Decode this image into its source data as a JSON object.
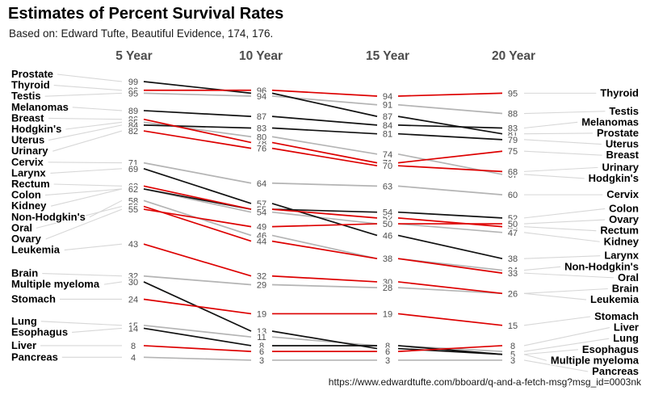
{
  "title": "Estimates of Percent Survival Rates",
  "subtitle": "Based on: Edward Tufte, Beautiful Evidence, 174, 176.",
  "source_url": "https://www.edwardtufte.com/bboard/q-and-a-fetch-msg?msg_id=0003nk",
  "colors": {
    "red": "#dd0000",
    "black": "#111111",
    "gray": "#b4b4b4",
    "leader": "#d7d7d7",
    "number": "#4d4d4d"
  },
  "chart_data": {
    "type": "line",
    "variant": "slopegraph",
    "title": "Estimates of Percent Survival Rates",
    "columns": [
      "5 Year",
      "10 Year",
      "15 Year",
      "20 Year"
    ],
    "ylim": [
      0,
      100
    ],
    "grid": false,
    "legend": "none",
    "series": [
      {
        "name": "Prostate",
        "values": [
          99,
          95,
          87,
          81
        ],
        "color": "black"
      },
      {
        "name": "Thyroid",
        "values": [
          96,
          96,
          94,
          95
        ],
        "color": "red"
      },
      {
        "name": "Testis",
        "values": [
          95,
          94,
          91,
          88
        ],
        "color": "gray"
      },
      {
        "name": "Melanomas",
        "values": [
          89,
          87,
          84,
          83
        ],
        "color": "black"
      },
      {
        "name": "Breast",
        "values": [
          86,
          78,
          71,
          75
        ],
        "color": "red"
      },
      {
        "name": "Hodgkin's",
        "values": [
          85,
          80,
          74,
          67
        ],
        "color": "gray"
      },
      {
        "name": "Uterus",
        "values": [
          84,
          83,
          81,
          79
        ],
        "color": "black"
      },
      {
        "name": "Urinary",
        "values": [
          82,
          76,
          70,
          68
        ],
        "color": "red"
      },
      {
        "name": "Cervix",
        "values": [
          71,
          64,
          63,
          60
        ],
        "color": "gray"
      },
      {
        "name": "Larynx",
        "values": [
          69,
          57,
          46,
          38
        ],
        "color": "black"
      },
      {
        "name": "Rectum",
        "values": [
          63,
          55,
          52,
          49
        ],
        "color": "red"
      },
      {
        "name": "Colon",
        "values": [
          62,
          55,
          54,
          52
        ],
        "color": "black"
      },
      {
        "name": "Kidney",
        "values": [
          62,
          54,
          50,
          47
        ],
        "color": "gray"
      },
      {
        "name": "Non-Hodgkin's",
        "values": [
          58,
          46,
          38,
          34
        ],
        "color": "gray"
      },
      {
        "name": "Oral",
        "values": [
          56,
          44,
          38,
          33
        ],
        "color": "red"
      },
      {
        "name": "Ovary",
        "values": [
          55,
          49,
          50,
          50
        ],
        "color": "red"
      },
      {
        "name": "Leukemia",
        "values": [
          43,
          32,
          30,
          26
        ],
        "color": "red"
      },
      {
        "name": "Brain",
        "values": [
          32,
          29,
          28,
          26
        ],
        "color": "gray"
      },
      {
        "name": "Multiple myeloma",
        "values": [
          30,
          13,
          7,
          5
        ],
        "color": "black"
      },
      {
        "name": "Stomach",
        "values": [
          24,
          19,
          19,
          15
        ],
        "color": "red"
      },
      {
        "name": "Lung",
        "values": [
          15,
          11,
          8,
          6
        ],
        "color": "gray"
      },
      {
        "name": "Esophagus",
        "values": [
          14,
          8,
          8,
          5
        ],
        "color": "black"
      },
      {
        "name": "Liver",
        "values": [
          8,
          6,
          6,
          8
        ],
        "color": "red"
      },
      {
        "name": "Pancreas",
        "values": [
          4,
          3,
          3,
          3
        ],
        "color": "gray"
      }
    ],
    "left_labels": [
      "Prostate",
      "Thyroid",
      "Testis",
      "Melanomas",
      "Breast",
      "Hodgkin's",
      "Uterus",
      "Urinary",
      "Cervix",
      "Larynx",
      "Rectum",
      "Colon",
      "Kidney",
      "Non-Hodgkin's",
      "Oral",
      "Ovary",
      "Leukemia",
      "Brain",
      "Multiple myeloma",
      "Stomach",
      "Lung",
      "Esophagus",
      "Liver",
      "Pancreas"
    ],
    "right_labels": [
      "Thyroid",
      "Testis",
      "Melanomas",
      "Prostate",
      "Uterus",
      "Breast",
      "Urinary",
      "Hodgkin's",
      "Cervix",
      "Colon",
      "Ovary",
      "Rectum",
      "Kidney",
      "Larynx",
      "Non-Hodgkin's",
      "Oral",
      "Brain",
      "Leukemia",
      "Stomach",
      "Liver",
      "Lung",
      "Esophagus",
      "Multiple myeloma",
      "Pancreas"
    ]
  }
}
